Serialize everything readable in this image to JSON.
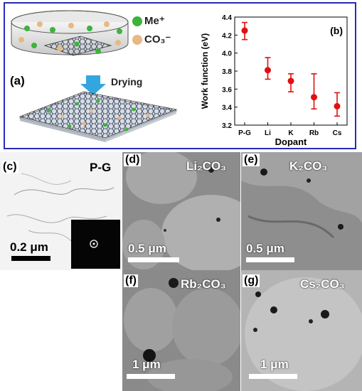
{
  "schematic": {
    "panel_label": "(a)",
    "legend": [
      {
        "label": "Me⁺",
        "color": "#3bb43b"
      },
      {
        "label": "CO₃⁻",
        "color": "#e8b882"
      }
    ],
    "arrow_label": "Drying",
    "arrow_color": "#33a6e0"
  },
  "chart_data": {
    "type": "scatter",
    "panel_label": "(b)",
    "categories": [
      "P-G",
      "Li",
      "K",
      "Rb",
      "Cs"
    ],
    "values": [
      4.25,
      3.81,
      3.69,
      3.51,
      3.41
    ],
    "err_upper": [
      4.34,
      3.95,
      3.77,
      3.77,
      3.56
    ],
    "err_lower": [
      4.15,
      3.71,
      3.57,
      3.38,
      3.3
    ],
    "xlabel": "Dopant",
    "ylabel": "Work function (eV)",
    "ylim": [
      3.2,
      4.4
    ],
    "yticks": [
      "3.2",
      "3.4",
      "3.6",
      "3.8",
      "4.0",
      "4.2",
      "4.4"
    ],
    "color": "#e01010"
  },
  "tem_panels": [
    {
      "label": "(c)",
      "title": "P-G",
      "scale": "0.2 μm"
    },
    {
      "label": "(d)",
      "title": "Li₂CO₃",
      "scale": "0.5 μm"
    },
    {
      "label": "(e)",
      "title": "K₂CO₃",
      "scale": "0.5 μm"
    },
    {
      "label": "(f)",
      "title": "Rb₂CO₃",
      "scale": "1 μm"
    },
    {
      "label": "(g)",
      "title": "Cs₂CO₃",
      "scale": "1 μm"
    }
  ]
}
